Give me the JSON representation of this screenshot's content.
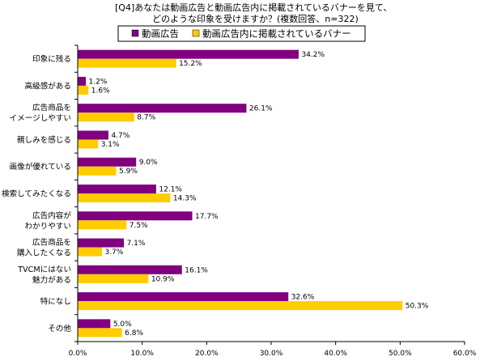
{
  "chart_data": {
    "type": "bar",
    "orientation": "horizontal",
    "title_lines": [
      "[Q4]あなたは動画広告と動画広告内に掲載されているバナーを見て、",
      "どのような印象を受けますか？(複数回答、n=322)"
    ],
    "legend_position": "top",
    "categories": [
      [
        "印象に残る"
      ],
      [
        "高級感がある"
      ],
      [
        "広告商品を",
        "イメージしやすい"
      ],
      [
        "親しみを感じる"
      ],
      [
        "画像が優れている"
      ],
      [
        "検索してみたくなる"
      ],
      [
        "広告内容が",
        "わかりやすい"
      ],
      [
        "広告商品を",
        "購入したくなる"
      ],
      [
        "TVCMにはない",
        "魅力がある"
      ],
      [
        "特になし"
      ],
      [
        "その他"
      ]
    ],
    "series": [
      {
        "name": "動画広告",
        "color": "#800080",
        "values": [
          34.2,
          1.2,
          26.1,
          4.7,
          9.0,
          12.1,
          17.7,
          7.1,
          16.1,
          32.6,
          5.0
        ],
        "labels": [
          "34.2%",
          "1.2%",
          "26.1%",
          "4.7%",
          "9.0%",
          "12.1%",
          "17.7%",
          "7.1%",
          "16.1%",
          "32.6%",
          "5.0%"
        ]
      },
      {
        "name": "動画広告内に掲載されているバナー",
        "color": "#FFCC00",
        "values": [
          15.2,
          1.6,
          8.7,
          3.1,
          5.9,
          14.3,
          7.5,
          3.7,
          10.9,
          50.3,
          6.8
        ],
        "labels": [
          "15.2%",
          "1.6%",
          "8.7%",
          "3.1%",
          "5.9%",
          "14.3%",
          "7.5%",
          "3.7%",
          "10.9%",
          "50.3%",
          "6.8%"
        ]
      }
    ],
    "xlim": [
      0,
      60
    ],
    "x_ticks": [
      "0.0%",
      "10.0%",
      "20.0%",
      "30.0%",
      "40.0%",
      "50.0%",
      "60.0%"
    ],
    "grid": false
  }
}
